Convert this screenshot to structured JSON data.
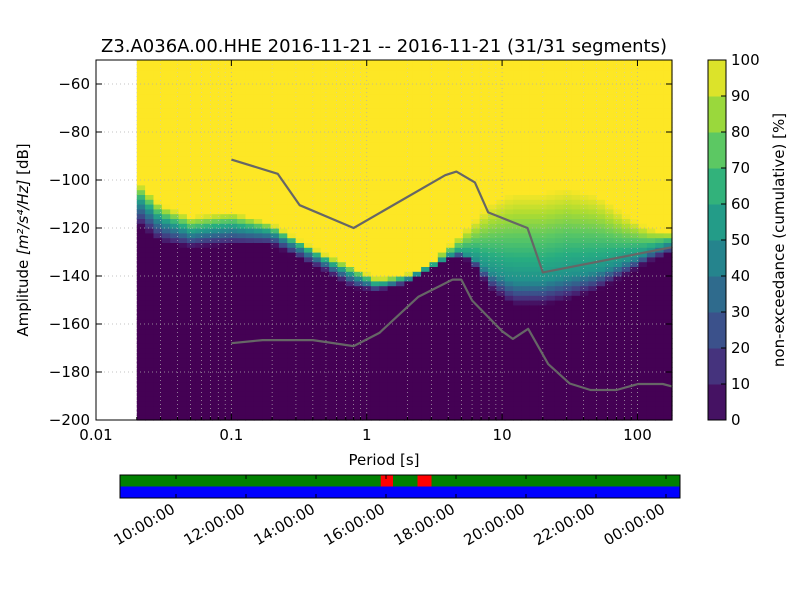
{
  "chart_data": [
    {
      "type": "heatmap",
      "title": "Z3.A036A.00.HHE   2016-11-21 -- 2016-11-21  (31/31 segments)",
      "xlabel": "Period [s]",
      "ylabel_prefix": "Amplitude ",
      "ylabel_math": "[m²/s⁴/Hz]",
      "ylabel_suffix": " [dB]",
      "x_scale": "log",
      "xlim": [
        0.01,
        180
      ],
      "ylim": [
        -200,
        -50
      ],
      "x_ticks": [
        0.01,
        0.1,
        1,
        10,
        100
      ],
      "x_tick_labels": [
        "0.01",
        "0.1",
        "1",
        "10",
        "100"
      ],
      "y_ticks": [
        -200,
        -180,
        -160,
        -140,
        -120,
        -100,
        -80,
        -60
      ],
      "y_tick_labels": [
        "−200",
        "−180",
        "−160",
        "−140",
        "−120",
        "−100",
        "−80",
        "−60"
      ],
      "grid": true,
      "colormap": "viridis",
      "data_min_period": 0.02,
      "colorbar": {
        "label": "non-exceedance (cumulative) [%]",
        "range": [
          0,
          100
        ],
        "ticks": [
          0,
          10,
          20,
          30,
          40,
          50,
          60,
          70,
          80,
          90,
          100
        ],
        "tick_labels": [
          "0",
          "10",
          "20",
          "30",
          "40",
          "50",
          "60",
          "70",
          "80",
          "90",
          "100"
        ]
      },
      "psd_distribution": {
        "period": [
          0.02,
          0.03,
          0.05,
          0.1,
          0.2,
          0.3,
          0.5,
          0.8,
          1.2,
          2,
          3,
          4.5,
          6,
          8,
          12,
          20,
          30,
          50,
          80,
          120,
          180
        ],
        "bottom_edge_db": [
          -118,
          -126,
          -128,
          -127,
          -127,
          -132,
          -138,
          -145,
          -146,
          -143,
          -137,
          -131,
          -134,
          -145,
          -152,
          -152,
          -150,
          -146,
          -140,
          -134,
          -130
        ],
        "p50_db": [
          -108,
          -117,
          -122,
          -120,
          -122,
          -127,
          -134,
          -140,
          -144,
          -141,
          -136,
          -130,
          -132,
          -138,
          -142,
          -142,
          -140,
          -138,
          -134,
          -130,
          -126
        ],
        "top_edge_db": [
          -100,
          -110,
          -115,
          -113,
          -118,
          -124,
          -131,
          -136,
          -141,
          -139,
          -134,
          -125,
          -118,
          -110,
          -105,
          -105,
          -103,
          -106,
          -114,
          -120,
          -122
        ]
      },
      "reference_curves": {
        "color": "#666666",
        "upper": {
          "period": [
            0.1,
            0.22,
            0.32,
            0.8,
            3.8,
            4.6,
            6.3,
            7.9,
            15.4,
            20,
            200
          ],
          "db": [
            -91.5,
            -97.4,
            -110.5,
            -120,
            -98,
            -96.5,
            -101,
            -113.5,
            -120,
            -138.5,
            -128
          ]
        },
        "lower": {
          "period": [
            0.1,
            0.17,
            0.4,
            0.8,
            1.24,
            2.4,
            4.3,
            5,
            6,
            10,
            12,
            15.6,
            21.9,
            31.6,
            45,
            70,
            101,
            154,
            200
          ],
          "db": [
            -168,
            -166.7,
            -166.7,
            -169.2,
            -163.7,
            -148.7,
            -141.5,
            -141.5,
            -150.2,
            -163,
            -166.2,
            -162,
            -176.7,
            -184.8,
            -187.5,
            -187.5,
            -185,
            -185,
            -186
          ]
        }
      }
    },
    {
      "type": "timeline",
      "tick_labels": [
        "10:00:00",
        "12:00:00",
        "14:00:00",
        "16:00:00",
        "18:00:00",
        "20:00:00",
        "22:00:00",
        "00:00:00"
      ],
      "range_hours": [
        8.4,
        24.4
      ],
      "tick_hours": [
        10,
        12,
        14,
        16,
        18,
        20,
        22,
        24
      ],
      "bands": [
        {
          "name": "",
          "color": "#008000",
          "segments": [
            [
              8.4,
              24.4
            ]
          ]
        },
        {
          "name": "",
          "color": "#0000ff",
          "segments": [
            [
              8.4,
              24.4
            ]
          ]
        }
      ],
      "gaps": {
        "color": "#ff0000",
        "segments": [
          [
            15.85,
            16.2
          ],
          [
            16.9,
            17.3
          ]
        ]
      }
    }
  ]
}
